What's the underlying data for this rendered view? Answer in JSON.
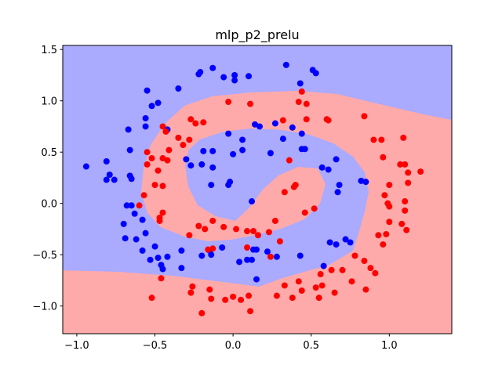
{
  "chart_data": {
    "type": "scatter",
    "title": "mlp_p2_prelu",
    "xlim": [
      -1.09,
      1.4
    ],
    "ylim": [
      -1.27,
      1.54
    ],
    "xticks": [
      {
        "value": -1.0,
        "label": "−1.0"
      },
      {
        "value": -0.5,
        "label": "−0.5"
      },
      {
        "value": 0.0,
        "label": "0.0"
      },
      0.5,
      {
        "value": 1.0,
        "label": "1.0"
      }
    ],
    "yticks": [
      {
        "value": -1.0,
        "label": "−1.0"
      },
      {
        "value": -0.5,
        "label": "−0.5"
      },
      {
        "value": 0.0,
        "label": "0.0"
      },
      0.5,
      {
        "value": 1.0,
        "label": "1.0"
      },
      1.5
    ],
    "series": [
      {
        "color": "#0000ff",
        "x": [
          -0.94,
          -0.81,
          -0.79,
          -0.81,
          -0.76,
          -0.66,
          -0.65,
          -0.67,
          -0.66,
          -0.56,
          -0.52,
          -0.48,
          -0.56,
          -0.42,
          -0.55,
          -0.35,
          -0.21,
          -0.22,
          -0.13,
          -0.06,
          0.01,
          0.01,
          0.1,
          0.34,
          0.43,
          0.51,
          0.53,
          0.38,
          0.44,
          0.32,
          0.27,
          0.14,
          0.17,
          0.06,
          0.44,
          0.46,
          -0.03,
          0.06,
          0.0,
          -0.19,
          -0.13,
          -0.3,
          -0.2,
          -0.13,
          -0.27,
          -0.14,
          -0.03,
          -0.02,
          0.12,
          0.24,
          0.57,
          0.61,
          0.66,
          0.68,
          0.67,
          0.82,
          0.85,
          -0.65,
          -0.68,
          -0.63,
          -0.58,
          -0.56,
          -0.62,
          -0.69,
          -0.7,
          -0.58,
          -0.53,
          -0.5,
          -0.48,
          -0.46,
          -0.45,
          -0.33,
          -0.33,
          -0.42,
          -0.2,
          -0.15,
          -0.14,
          -0.07,
          0.12,
          0.09,
          0.04,
          0.13,
          0.15,
          0.22,
          0.28,
          0.43,
          0.15,
          0.58,
          0.62,
          0.66,
          0.72,
          0.75
        ],
        "y": [
          0.36,
          0.41,
          0.28,
          0.23,
          0.23,
          0.27,
          0.24,
          0.72,
          0.52,
          0.75,
          0.95,
          0.98,
          0.83,
          0.72,
          1.1,
          1.12,
          1.28,
          1.26,
          1.32,
          1.23,
          1.25,
          1.2,
          1.24,
          1.35,
          1.17,
          1.3,
          1.27,
          0.74,
          0.68,
          0.63,
          0.78,
          0.77,
          0.75,
          0.62,
          0.53,
          0.53,
          0.68,
          0.52,
          0.48,
          0.51,
          0.51,
          0.43,
          0.38,
          0.35,
          0.37,
          0.18,
          0.18,
          0.21,
          0.02,
          0.49,
          0.35,
          0.33,
          0.43,
          0.18,
          0.11,
          0.22,
          0.21,
          -0.02,
          -0.02,
          -0.1,
          -0.16,
          -0.29,
          -0.35,
          -0.34,
          -0.2,
          -0.46,
          -0.55,
          -0.42,
          -0.53,
          -0.6,
          -0.64,
          -0.46,
          -0.63,
          -0.52,
          -0.51,
          -0.46,
          -0.5,
          -0.43,
          -0.55,
          -0.55,
          -0.57,
          -0.45,
          -0.45,
          -0.47,
          -0.52,
          -0.51,
          -0.74,
          -0.61,
          -0.38,
          -0.4,
          -0.35,
          -0.38
        ]
      },
      {
        "color": "#ff0000",
        "x": [
          -0.55,
          -0.52,
          -0.55,
          -0.48,
          -0.42,
          -0.45,
          -0.41,
          -0.32,
          -0.28,
          -0.35,
          -0.43,
          -0.45,
          -0.27,
          -0.24,
          -0.19,
          -0.03,
          0.11,
          0.32,
          0.42,
          0.44,
          0.47,
          0.47,
          0.6,
          0.61,
          0.84,
          0.9,
          0.95,
          0.96,
          1.09,
          1.07,
          1.1,
          1.12,
          1.12,
          1.2,
          1.0,
          0.97,
          0.99,
          1.0,
          1.1,
          1.1,
          1.0,
          1.08,
          1.11,
          0.93,
          0.98,
          0.96,
          0.84,
          0.88,
          0.91,
          0.78,
          0.7,
          0.63,
          0.56,
          0.57,
          0.53,
          0.55,
          0.44,
          0.42,
          0.65,
          0.76,
          0.85,
          0.38,
          0.33,
          0.28,
          0.1,
          0.11,
          0.05,
          0.0,
          -0.05,
          -0.14,
          -0.15,
          -0.2,
          -0.27,
          -0.26,
          -0.16,
          -0.13,
          -0.52,
          -0.46,
          0.36,
          0.4,
          0.39,
          0.33,
          0.27,
          0.3,
          0.23,
          0.13,
          0.16,
          0.09,
          0.02,
          -0.06,
          -0.13,
          -0.18,
          -0.22,
          -0.28,
          -0.45,
          -0.47,
          -0.47,
          -0.6,
          -0.57,
          -0.45,
          -0.5,
          0.46,
          0.52,
          0.09,
          0.24
        ],
        "y": [
          0.5,
          0.44,
          0.38,
          0.32,
          0.42,
          0.44,
          0.52,
          0.57,
          0.62,
          0.64,
          0.7,
          0.75,
          0.82,
          0.78,
          0.79,
          0.99,
          0.97,
          0.81,
          0.99,
          1.09,
          0.97,
          0.82,
          0.82,
          0.81,
          0.85,
          0.62,
          0.62,
          0.45,
          0.64,
          0.38,
          0.38,
          0.3,
          0.2,
          0.31,
          0.18,
          0.08,
          0.0,
          -0.03,
          0.02,
          -0.07,
          -0.18,
          -0.2,
          -0.26,
          -0.31,
          -0.3,
          -0.4,
          -0.56,
          -0.63,
          -0.68,
          -0.51,
          -0.65,
          -0.65,
          -0.69,
          -0.8,
          -0.82,
          -0.92,
          -0.85,
          -0.76,
          -0.87,
          -0.76,
          -0.84,
          -0.92,
          -0.8,
          -0.9,
          -0.9,
          -1.05,
          -0.94,
          -0.91,
          -0.94,
          -0.93,
          -0.84,
          -1.07,
          -0.87,
          -0.81,
          -0.45,
          -0.44,
          -0.92,
          -0.73,
          0.42,
          0.18,
          0.16,
          0.11,
          -0.17,
          -0.37,
          -0.28,
          -0.27,
          -0.31,
          -0.27,
          -0.25,
          -0.23,
          -0.17,
          -0.25,
          -0.22,
          -0.31,
          -0.09,
          -0.14,
          -0.17,
          -0.02,
          0.08,
          0.17,
          0.18,
          -0.09,
          -0.05,
          -0.43,
          -0.52
        ]
      }
    ]
  }
}
